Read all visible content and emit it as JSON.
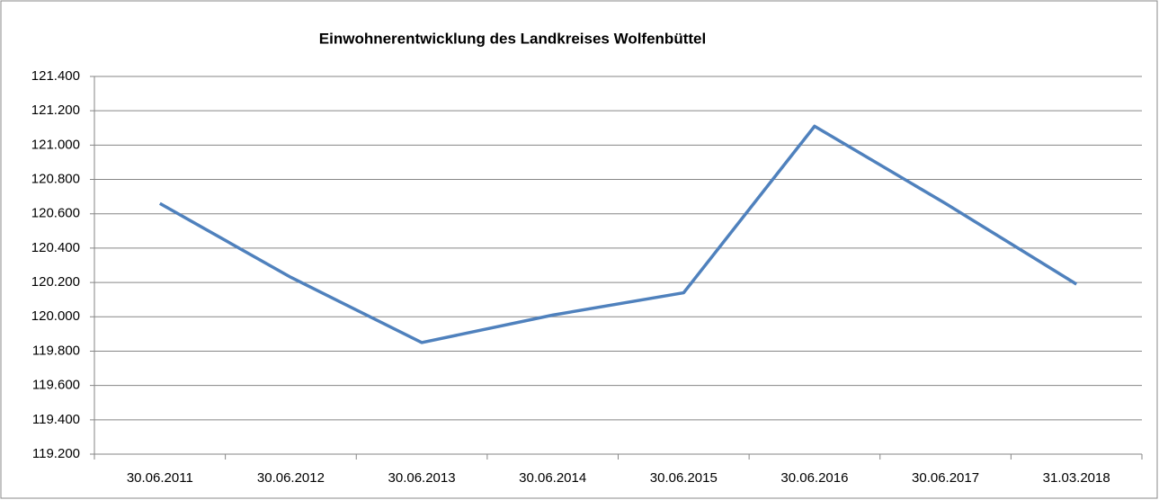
{
  "chart_data": {
    "type": "line",
    "title": "Einwohnerentwicklung des Landkreises Wolfenbüttel",
    "categories": [
      "30.06.2011",
      "30.06.2012",
      "30.06.2013",
      "30.06.2014",
      "30.06.2015",
      "30.06.2016",
      "30.06.2017",
      "31.03.2018"
    ],
    "series": [
      {
        "color": "#4f81bd",
        "values": [
          120660,
          120230,
          119850,
          120010,
          120140,
          121110,
          120660,
          120190
        ]
      }
    ],
    "ylim": [
      119200,
      121400
    ],
    "yticks": [
      {
        "value": 119200,
        "label": "119.200"
      },
      {
        "value": 119400,
        "label": "119.400"
      },
      {
        "value": 119600,
        "label": "119.600"
      },
      {
        "value": 119800,
        "label": "119.800"
      },
      {
        "value": 120000,
        "label": "120.000"
      },
      {
        "value": 120200,
        "label": "120.200"
      },
      {
        "value": 120400,
        "label": "120.400"
      },
      {
        "value": 120600,
        "label": "120.600"
      },
      {
        "value": 120800,
        "label": "120.800"
      },
      {
        "value": 121000,
        "label": "121.000"
      },
      {
        "value": 121200,
        "label": "121.200"
      },
      {
        "value": 121400,
        "label": "121.400"
      }
    ],
    "grid": true
  }
}
